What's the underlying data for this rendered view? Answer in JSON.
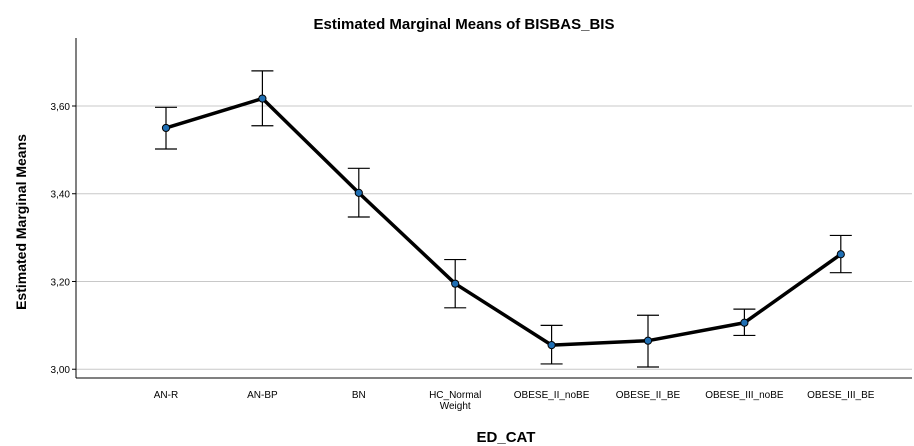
{
  "chart_data": {
    "type": "line",
    "title": "Estimated Marginal Means of BISBAS_BIS",
    "xlabel": "ED_CAT",
    "ylabel": "Estimated Marginal Means",
    "categories": [
      [
        "AN-R"
      ],
      [
        "AN-BP"
      ],
      [
        "BN"
      ],
      [
        "HC_Normal",
        "Weight"
      ],
      [
        "OBESE_II_noBE"
      ],
      [
        "OBESE_II_BE"
      ],
      [
        "OBESE_III_noBE"
      ],
      [
        "OBESE_III_BE"
      ]
    ],
    "values": [
      3.55,
      3.617,
      3.402,
      3.195,
      3.055,
      3.065,
      3.106,
      3.262
    ],
    "error_low": [
      3.502,
      3.555,
      3.347,
      3.14,
      3.012,
      3.005,
      3.077,
      3.22
    ],
    "error_high": [
      3.597,
      3.68,
      3.458,
      3.25,
      3.1,
      3.123,
      3.137,
      3.305
    ],
    "ylim": [
      2.98,
      3.755
    ],
    "yticks": [
      3.0,
      3.2,
      3.4,
      3.6
    ],
    "ytick_labels": [
      "3,00",
      "3,20",
      "3,40",
      "3,60"
    ],
    "grid": true,
    "colors": {
      "line": "#000000",
      "marker": "#1f6fb4",
      "grid": "#c8c8c8"
    }
  }
}
